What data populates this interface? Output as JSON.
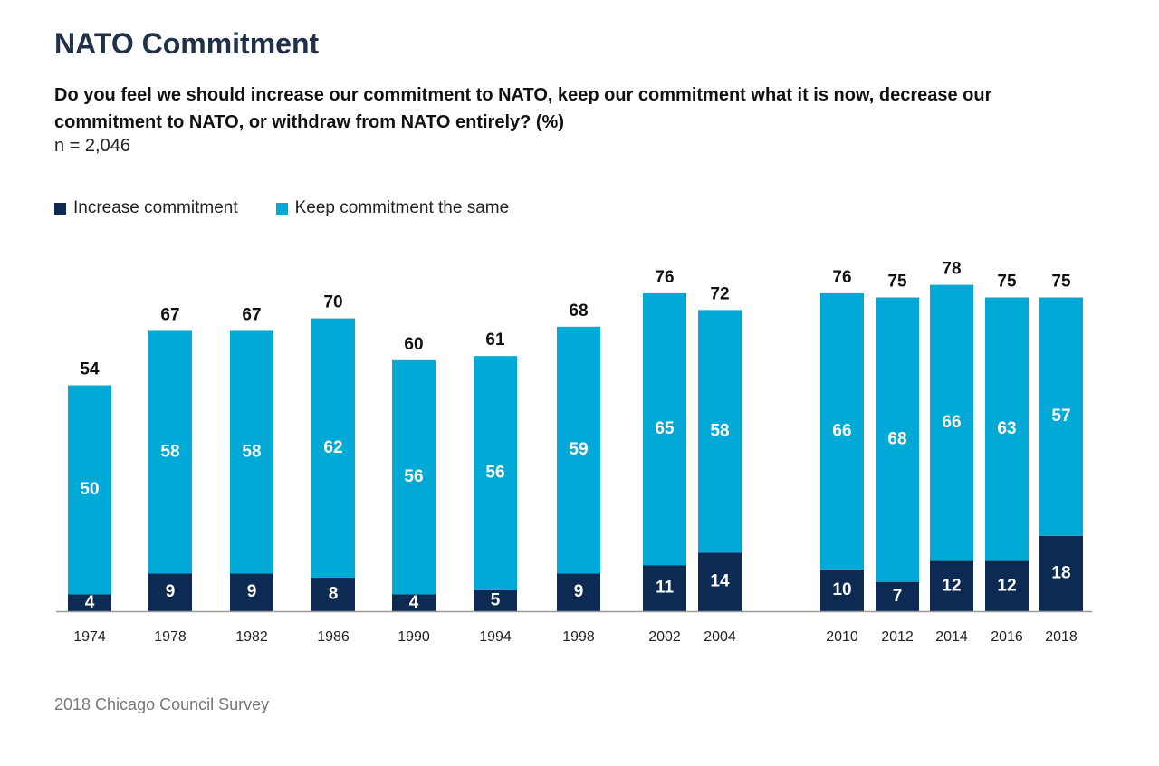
{
  "header": {
    "title": "NATO Commitment",
    "question": "Do you feel we should increase our commitment to NATO, keep our commitment what it is now, decrease our commitment to NATO, or withdraw from NATO entirely? (%)",
    "sample": "n = 2,046"
  },
  "footer": {
    "source": "2018 Chicago Council Survey"
  },
  "colors": {
    "increase": "#0c2a52",
    "keep": "#00a9d6",
    "baseline": "#9a9a9a",
    "total_label": "#111111",
    "inner_label": "#ffffff"
  },
  "chart_data": {
    "type": "bar",
    "stacked": true,
    "categories": [
      "1974",
      "1978",
      "1982",
      "1986",
      "1990",
      "1994",
      "1998",
      "2002",
      "2004",
      "2010",
      "2012",
      "2014",
      "2016",
      "2018"
    ],
    "series": [
      {
        "name": "Increase commitment",
        "color": "#0c2a52",
        "values": [
          4,
          9,
          9,
          8,
          4,
          5,
          9,
          11,
          14,
          10,
          7,
          12,
          12,
          18
        ]
      },
      {
        "name": "Keep commitment the same",
        "color": "#00a9d6",
        "values": [
          50,
          58,
          58,
          62,
          56,
          56,
          59,
          65,
          58,
          66,
          68,
          66,
          63,
          57
        ]
      }
    ],
    "totals": [
      54,
      67,
      67,
      70,
      60,
      61,
      68,
      76,
      72,
      76,
      75,
      78,
      75,
      75
    ],
    "ylim": [
      0,
      80
    ],
    "grid": false,
    "legend_position": "top-left",
    "title": "NATO Commitment",
    "xlabel": "",
    "ylabel": ""
  }
}
